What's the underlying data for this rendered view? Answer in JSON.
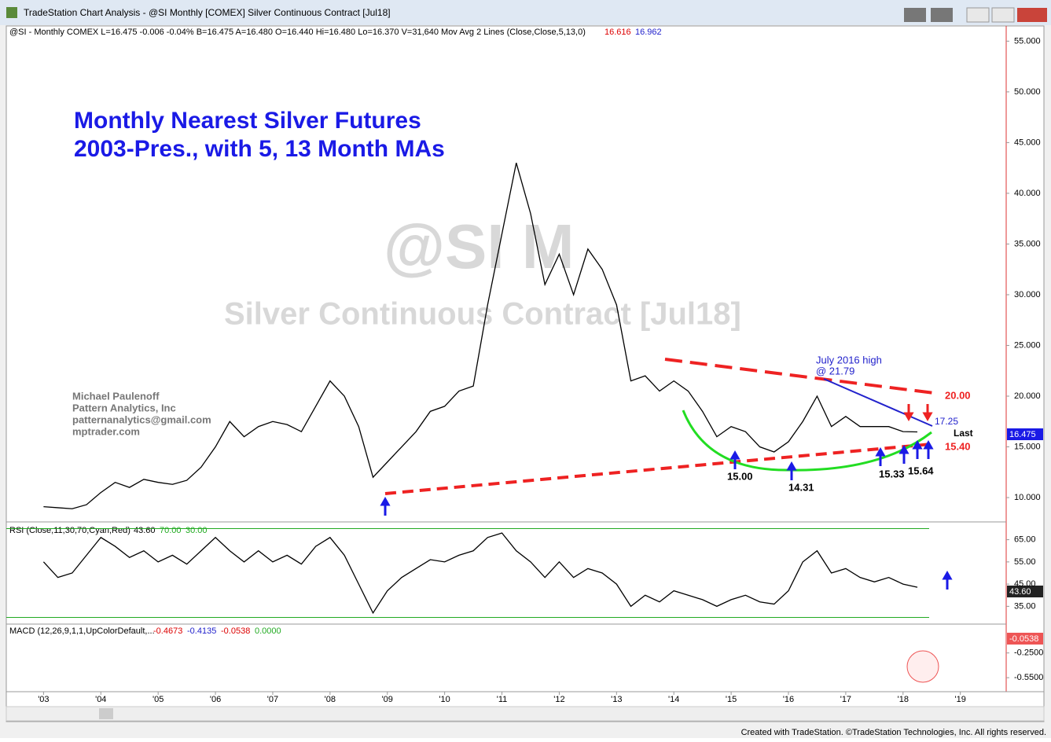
{
  "window": {
    "title": "TradeStation Chart Analysis - @SI Monthly [COMEX] Silver Continuous Contract [Jul18]",
    "footer": "Created with TradeStation. ©TradeStation Technologies, Inc. All rights reserved."
  },
  "chart_data": [
    {
      "type": "line",
      "title": "@SI - Monthly  COMEX  L=16.475  -0.006  -0.04%  B=16.475  A=16.480  O=16.440  Hi=16.480  Lo=16.370  V=31,640  Mov Avg 2 Lines (Close,Close,5,13,0)",
      "legend_values": [
        "16.616",
        "16.962"
      ],
      "last_value": "16.475",
      "last_label": "Last",
      "watermark": [
        "@SI M",
        "Silver Continuous Contract [Jul18]"
      ],
      "annotations": {
        "heading": [
          "Monthly Nearest Silver Futures",
          "2003-Pres., with 5, 13 Month MAs"
        ],
        "author": [
          "Michael Paulenoff",
          "Pattern Analytics, Inc",
          "patternanalytics@gmail.com",
          "mptrader.com"
        ],
        "high": [
          "July 2016 high",
          "@ 21.79"
        ],
        "levels": [
          "20.00",
          "17.25",
          "15.40"
        ],
        "lows": [
          "15.00",
          "14.31",
          "15.33",
          "15.64"
        ]
      },
      "ylim": [
        7.6,
        56.5
      ],
      "yticks": [
        {
          "value": 10,
          "label": "10.000"
        },
        {
          "value": 15,
          "label": "15.000"
        },
        {
          "value": 20,
          "label": "20.000"
        },
        {
          "value": 25,
          "label": "25.000"
        },
        {
          "value": 30,
          "label": "30.000"
        },
        {
          "value": 35,
          "label": "35.000"
        },
        {
          "value": 40,
          "label": "40.000"
        },
        {
          "value": 45,
          "label": "45.000"
        },
        {
          "value": 50,
          "label": "50.000"
        },
        {
          "value": 55,
          "label": "55.000"
        }
      ],
      "xlim": [
        2002.35,
        2019.8
      ],
      "xticks": [
        {
          "value": 2003,
          "label": "'03"
        },
        {
          "value": 2004,
          "label": "'04"
        },
        {
          "value": 2005,
          "label": "'05"
        },
        {
          "value": 2006,
          "label": "'06"
        },
        {
          "value": 2007,
          "label": "'07"
        },
        {
          "value": 2008,
          "label": "'08"
        },
        {
          "value": 2009,
          "label": "'09"
        },
        {
          "value": 2010,
          "label": "'10"
        },
        {
          "value": 2011,
          "label": "'11"
        },
        {
          "value": 2012,
          "label": "'12"
        },
        {
          "value": 2013,
          "label": "'13"
        },
        {
          "value": 2014,
          "label": "'14"
        },
        {
          "value": 2015,
          "label": "'15"
        },
        {
          "value": 2016,
          "label": "'16"
        },
        {
          "value": 2017,
          "label": "'17"
        },
        {
          "value": 2018,
          "label": "'18"
        },
        {
          "value": 2019,
          "label": "'19"
        }
      ],
      "x": [
        2003,
        2003.25,
        2003.5,
        2003.75,
        2004,
        2004.25,
        2004.5,
        2004.75,
        2005,
        2005.25,
        2005.5,
        2005.75,
        2006,
        2006.25,
        2006.5,
        2006.75,
        2007,
        2007.25,
        2007.5,
        2007.75,
        2008,
        2008.25,
        2008.5,
        2008.75,
        2009,
        2009.25,
        2009.5,
        2009.75,
        2010,
        2010.25,
        2010.5,
        2010.75,
        2011,
        2011.25,
        2011.5,
        2011.75,
        2012,
        2012.25,
        2012.5,
        2012.75,
        2013,
        2013.25,
        2013.5,
        2013.75,
        2014,
        2014.25,
        2014.5,
        2014.75,
        2015,
        2015.25,
        2015.5,
        2015.75,
        2016,
        2016.25,
        2016.5,
        2016.75,
        2017,
        2017.25,
        2017.5,
        2017.75,
        2018,
        2018.25
      ],
      "series": [
        {
          "name": "Close",
          "color": "#000000",
          "values": [
            9.1,
            9.0,
            8.9,
            9.3,
            10.5,
            11.5,
            11.0,
            11.8,
            11.5,
            11.3,
            11.7,
            13.0,
            15.0,
            17.5,
            16.0,
            17.0,
            17.5,
            17.2,
            16.5,
            19.0,
            21.5,
            20.0,
            17.0,
            12.0,
            13.5,
            15.0,
            16.5,
            18.5,
            19.0,
            20.5,
            21.0,
            29.0,
            36.0,
            43.0,
            38.0,
            31.0,
            34.0,
            30.0,
            34.5,
            32.5,
            29.0,
            21.5,
            22.0,
            20.5,
            21.5,
            20.5,
            18.5,
            16.0,
            17.0,
            16.5,
            15.0,
            14.5,
            15.5,
            17.5,
            20.0,
            17.0,
            18.0,
            17.0,
            17.0,
            17.0,
            16.5,
            16.475
          ]
        }
      ]
    },
    {
      "type": "line",
      "title": "RSI (Close,11,30,70,Cyan,Red)",
      "legend_values": [
        "43.60",
        "70.00",
        "30.00"
      ],
      "last_value": "43.60",
      "levels": [
        70,
        30
      ],
      "ylim": [
        27,
        73
      ],
      "yticks": [
        {
          "value": 35,
          "label": "35.00"
        },
        {
          "value": 45,
          "label": "45.00"
        },
        {
          "value": 55,
          "label": "55.00"
        },
        {
          "value": 65,
          "label": "65.00"
        }
      ],
      "series": [
        {
          "name": "RSI",
          "color": "#000000",
          "values": [
            55,
            48,
            50,
            58,
            66,
            62,
            57,
            60,
            55,
            58,
            54,
            60,
            66,
            60,
            55,
            60,
            55,
            58,
            54,
            62,
            66,
            58,
            45,
            32,
            42,
            48,
            52,
            56,
            55,
            58,
            60,
            66,
            68,
            60,
            55,
            48,
            55,
            48,
            52,
            50,
            45,
            35,
            40,
            37,
            42,
            40,
            38,
            35,
            38,
            40,
            37,
            36,
            42,
            55,
            60,
            50,
            52,
            48,
            46,
            48,
            45,
            43.6
          ]
        }
      ]
    },
    {
      "type": "bar",
      "title": "MACD (12,26,9,1,1,UpColorDefault,...",
      "legend_values": [
        "-0.4673",
        "-0.4135",
        "-0.0538",
        "0.0000"
      ],
      "last_value": "-0.0538",
      "ylim": [
        -0.72,
        0.1
      ],
      "yticks": [
        {
          "value": -0.25,
          "label": "-0.2500"
        },
        {
          "value": -0.55,
          "label": "-0.5500"
        }
      ]
    }
  ]
}
